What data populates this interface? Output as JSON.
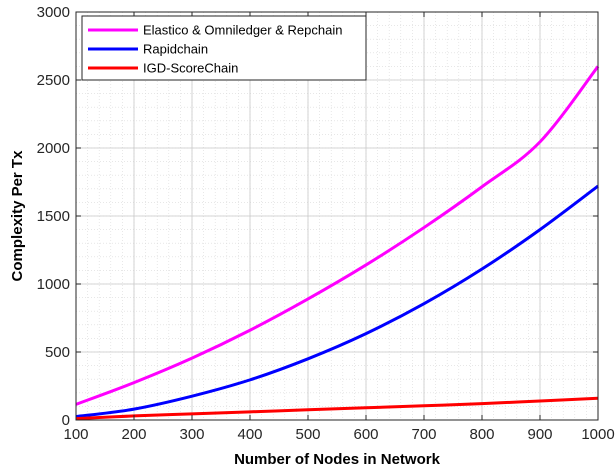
{
  "chart_data": {
    "type": "line",
    "title": "",
    "xlabel": "Number of Nodes in Network",
    "ylabel": "Complexity Per Tx",
    "xlim": [
      100,
      1000
    ],
    "ylim": [
      0,
      3000
    ],
    "x_ticks": [
      100,
      200,
      300,
      400,
      500,
      600,
      700,
      800,
      900,
      1000
    ],
    "y_ticks": [
      0,
      500,
      1000,
      1500,
      2000,
      2500,
      3000
    ],
    "grid": true,
    "minor_grid": true,
    "legend_position": "top-left",
    "x": [
      100,
      200,
      300,
      400,
      500,
      600,
      700,
      800,
      900,
      1000
    ],
    "series": [
      {
        "name": "Elastico & Omniledger & Repchain",
        "color": "#ff00ff",
        "values": [
          115,
          275,
          455,
          660,
          890,
          1140,
          1415,
          1715,
          2045,
          2600
        ]
      },
      {
        "name": "Rapidchain",
        "color": "#0000ff",
        "values": [
          25,
          80,
          175,
          295,
          450,
          635,
          855,
          1110,
          1400,
          1720
        ]
      },
      {
        "name": "IGD-ScoreChain",
        "color": "#ff0000",
        "values": [
          10,
          30,
          45,
          60,
          75,
          90,
          105,
          120,
          140,
          160
        ]
      }
    ]
  }
}
